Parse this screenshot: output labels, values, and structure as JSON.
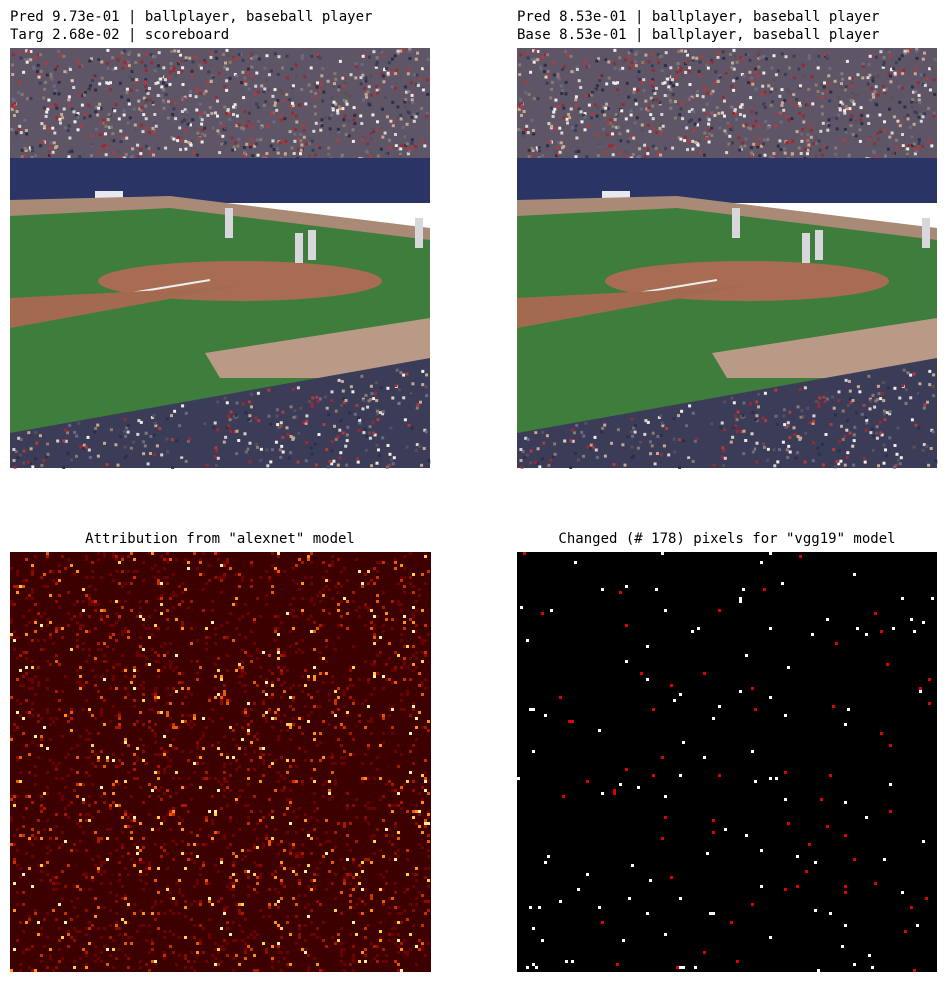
{
  "panels": [
    {
      "title_lines": [
        "Pred 9.73e-01 | ballplayer, baseball player",
        "Targ 2.68e-02 | scoreboard"
      ]
    },
    {
      "title_lines": [
        "Pred 8.53e-01 | ballplayer, baseball player",
        "Base 8.53e-01 | ballplayer, baseball player"
      ]
    },
    {
      "title": "Attribution from \"alexnet\" model"
    },
    {
      "title": "Changed (# 178) pixels for \"vgg19\" model"
    }
  ]
}
